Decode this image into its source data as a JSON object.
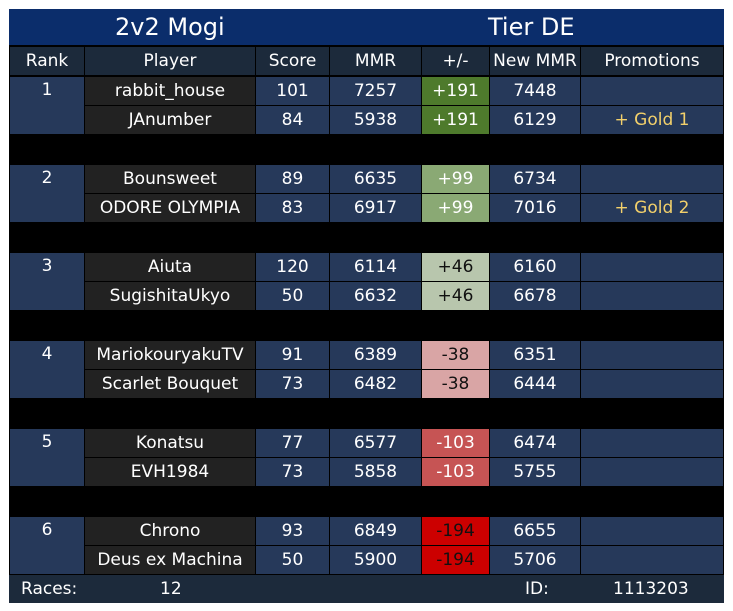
{
  "title": "2v2 Mogi",
  "tier": "Tier DE",
  "headers": [
    "Rank",
    "Player",
    "Score",
    "MMR",
    "+/-",
    "New MMR",
    "Promotions"
  ],
  "teams": [
    {
      "rank": "1",
      "players": [
        {
          "name": "rabbit_house",
          "score": "101",
          "mmr": "7257",
          "delta": "+191",
          "delta_color": "#4e7a2c",
          "delta_text": "#ffffff",
          "new_mmr": "7448",
          "promotion": ""
        },
        {
          "name": "JAnumber",
          "score": "84",
          "mmr": "5938",
          "delta": "+191",
          "delta_color": "#4e7a2c",
          "delta_text": "#ffffff",
          "new_mmr": "6129",
          "promotion": "+ Gold 1"
        }
      ]
    },
    {
      "rank": "2",
      "players": [
        {
          "name": "Bounsweet",
          "score": "89",
          "mmr": "6635",
          "delta": "+99",
          "delta_color": "#8aa974",
          "delta_text": "#ffffff",
          "new_mmr": "6734",
          "promotion": ""
        },
        {
          "name": "ODORE OLYMPIA",
          "score": "83",
          "mmr": "6917",
          "delta": "+99",
          "delta_color": "#8aa974",
          "delta_text": "#ffffff",
          "new_mmr": "7016",
          "promotion": "+ Gold 2"
        }
      ]
    },
    {
      "rank": "3",
      "players": [
        {
          "name": "Aiuta",
          "score": "120",
          "mmr": "6114",
          "delta": "+46",
          "delta_color": "#b8c6ad",
          "delta_text": "#111111",
          "new_mmr": "6160",
          "promotion": ""
        },
        {
          "name": "SugishitaUkyo",
          "score": "50",
          "mmr": "6632",
          "delta": "+46",
          "delta_color": "#b8c6ad",
          "delta_text": "#111111",
          "new_mmr": "6678",
          "promotion": ""
        }
      ]
    },
    {
      "rank": "4",
      "players": [
        {
          "name": "MariokouryakuTV",
          "score": "91",
          "mmr": "6389",
          "delta": "-38",
          "delta_color": "#d9a5a5",
          "delta_text": "#111111",
          "new_mmr": "6351",
          "promotion": ""
        },
        {
          "name": "Scarlet Bouquet",
          "score": "73",
          "mmr": "6482",
          "delta": "-38",
          "delta_color": "#d9a5a5",
          "delta_text": "#111111",
          "new_mmr": "6444",
          "promotion": ""
        }
      ]
    },
    {
      "rank": "5",
      "players": [
        {
          "name": "Konatsu",
          "score": "77",
          "mmr": "6577",
          "delta": "-103",
          "delta_color": "#c65454",
          "delta_text": "#ffffff",
          "new_mmr": "6474",
          "promotion": ""
        },
        {
          "name": "EVH1984",
          "score": "73",
          "mmr": "5858",
          "delta": "-103",
          "delta_color": "#c65454",
          "delta_text": "#ffffff",
          "new_mmr": "5755",
          "promotion": ""
        }
      ]
    },
    {
      "rank": "6",
      "players": [
        {
          "name": "Chrono",
          "score": "93",
          "mmr": "6849",
          "delta": "-194",
          "delta_color": "#cc0000",
          "delta_text": "#111111",
          "new_mmr": "6655",
          "promotion": ""
        },
        {
          "name": "Deus ex Machina",
          "score": "50",
          "mmr": "5900",
          "delta": "-194",
          "delta_color": "#cc0000",
          "delta_text": "#111111",
          "new_mmr": "5706",
          "promotion": ""
        }
      ]
    }
  ],
  "footer": {
    "races_label": "Races:",
    "races_value": "12",
    "id_label": "ID:",
    "id_value": "1113203"
  },
  "colors": {
    "title_bg": "#0b2d6b",
    "header_bg": "#1c2a3b",
    "blue_cell": "#26395a",
    "dark_cell": "#222222",
    "promotion_text": "#f2d06b",
    "gap": "#000000"
  }
}
